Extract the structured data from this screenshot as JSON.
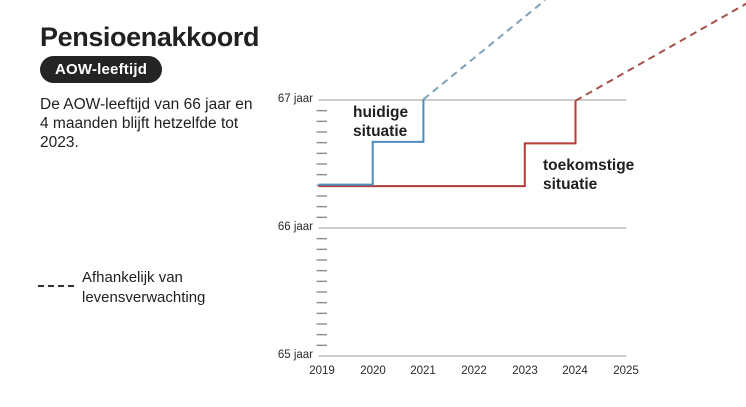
{
  "header": {
    "title": "Pensioenakkoord",
    "badge": "AOW-leeftijd"
  },
  "description": "De AOW-leeftijd van 66 jaar en\n4 maanden blijft hetzelfde tot\n2023.",
  "legend": {
    "label": "Afhankelijk van\nlevensverwachting",
    "dash_color": "#333333"
  },
  "colors": {
    "grid": "#999999",
    "tick": "#8c8c8c",
    "axis_text": "#2a2a2a",
    "badge_bg": "#242424",
    "badge_text": "#ffffff"
  },
  "chart_data": {
    "type": "line",
    "title": "",
    "xlabel": "",
    "ylabel": "",
    "xlim": [
      2019,
      2025
    ],
    "ylim_labels": [
      "65 jaar",
      "67 jaar"
    ],
    "grid": true,
    "minor_ticks": "monthly age ticks on y-axis",
    "legend_position": "left panel (dashed = afhankelijk van levensverwachting)",
    "xticks": [
      "2019",
      "2020",
      "2021",
      "2022",
      "2023",
      "2024",
      "2025"
    ],
    "yticks": [
      {
        "label": "65 jaar",
        "value": 65
      },
      {
        "label": "66 jaar",
        "value": 66
      },
      {
        "label": "67 jaar",
        "value": 67
      }
    ],
    "series": [
      {
        "name": "huidige situatie",
        "label_lines": "huidige\nsituatie",
        "color": "#4e8cbf",
        "dash_color": "#7fa1b5",
        "steps": [
          {
            "year": 2019,
            "age_num": 66.333,
            "age_label": "66 jaar en 4 maanden"
          },
          {
            "year": 2020,
            "age_num": 66.667,
            "age_label": "66 jaar en 8 maanden"
          },
          {
            "year": 2021,
            "age_num": 67.0,
            "age_label": "67 jaar"
          }
        ],
        "projection": {
          "year": 2023.4,
          "age_num": 67.78,
          "style": "dashed"
        }
      },
      {
        "name": "toekomstige situatie",
        "label_lines": "toekomstige\nsituatie",
        "color": "#b43b36",
        "dash_color": "#a5504a",
        "steps": [
          {
            "year": 2019,
            "age_num": 66.333,
            "age_label": "66 jaar en 4 maanden"
          },
          {
            "year": 2023,
            "age_num": 66.667,
            "age_label": "66 jaar en 8 maanden"
          },
          {
            "year": 2024,
            "age_num": 67.0,
            "age_label": "67 jaar"
          }
        ],
        "projection": {
          "year": 2027.4,
          "age_num": 67.76,
          "style": "dashed"
        }
      }
    ]
  }
}
